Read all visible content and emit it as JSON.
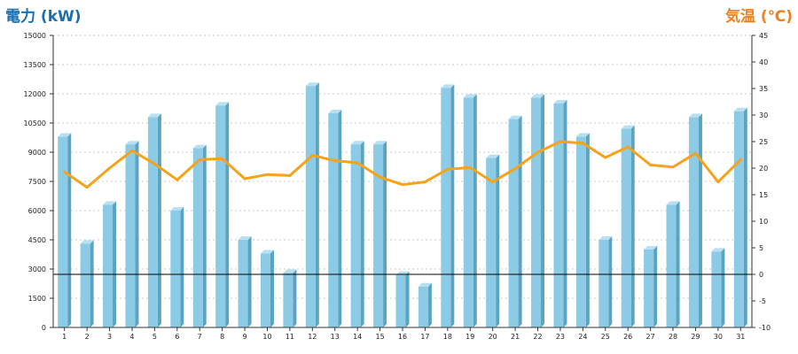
{
  "colors": {
    "left_title": "#1a6fb0",
    "right_title": "#f07f1e",
    "bar_front": "#8ccbe6",
    "bar_side": "#5ba3c2",
    "bar_top": "#b7e0f2",
    "line": "#f5a31a",
    "grid": "#bbbbbb"
  },
  "chart_data": {
    "type": "bar",
    "title": "",
    "left_axis": {
      "label": "電力 (kW)",
      "ylim": [
        0,
        15000
      ],
      "ticks": [
        "0",
        "1500",
        "3000",
        "4500",
        "6000",
        "7500",
        "9000",
        "10500",
        "12000",
        "13500",
        "15000"
      ]
    },
    "right_axis": {
      "label": "気温 (℃)",
      "ylim": [
        -10,
        45
      ],
      "ticks": [
        "-10",
        "-5",
        "0",
        "5",
        "10",
        "15",
        "20",
        "25",
        "30",
        "35",
        "40",
        "45"
      ]
    },
    "categories": [
      "1",
      "2",
      "3",
      "4",
      "5",
      "6",
      "7",
      "8",
      "9",
      "10",
      "11",
      "12",
      "13",
      "14",
      "15",
      "16",
      "17",
      "18",
      "19",
      "20",
      "21",
      "22",
      "23",
      "24",
      "25",
      "26",
      "27",
      "28",
      "29",
      "30",
      "31"
    ],
    "grid": true,
    "reference_line": {
      "axis": "right",
      "value": 0
    },
    "series": [
      {
        "type": "bar",
        "axis": "left",
        "values": [
          9800,
          4300,
          6300,
          9400,
          10800,
          6000,
          9200,
          11400,
          4500,
          3800,
          2800,
          12400,
          11000,
          9400,
          9400,
          2700,
          2100,
          12300,
          11800,
          8700,
          10700,
          11800,
          11500,
          9800,
          4500,
          10200,
          4000,
          6300,
          10800,
          3900,
          11100
        ]
      },
      {
        "type": "line",
        "axis": "right",
        "values": [
          19.3,
          16.4,
          20.0,
          23.3,
          20.8,
          17.8,
          21.6,
          21.8,
          18.0,
          18.8,
          18.6,
          22.4,
          21.4,
          21.0,
          18.3,
          16.9,
          17.4,
          19.8,
          20.1,
          17.4,
          19.9,
          23.0,
          25.0,
          24.7,
          22.0,
          24.0,
          20.6,
          20.2,
          22.8,
          17.4,
          21.6
        ]
      }
    ]
  }
}
